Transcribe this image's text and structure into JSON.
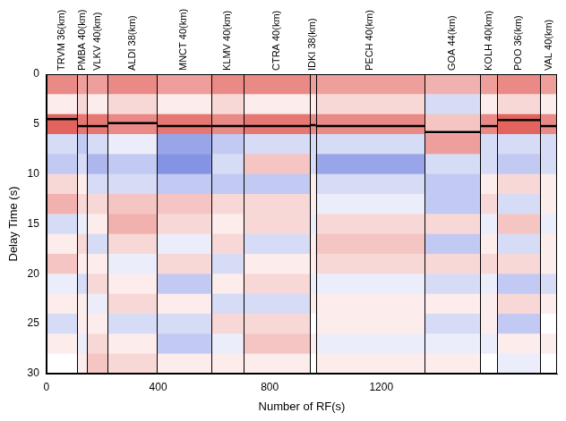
{
  "chart_data": {
    "type": "heatmap",
    "x_label": "Number of RF(s)",
    "y_label": "Delay Time (s)",
    "xlim": [
      0,
      1830
    ],
    "ylim": [
      0,
      30
    ],
    "xticks": [
      0,
      400,
      800,
      1200
    ],
    "yticks": [
      0,
      5,
      10,
      15,
      20,
      25,
      30
    ],
    "grid": false,
    "delay_bins": [
      0,
      2,
      4,
      6,
      8,
      10,
      12,
      14,
      16,
      18,
      20,
      22,
      24,
      26,
      28,
      30
    ],
    "zlim": [
      -1,
      1
    ],
    "stations": [
      {
        "name": "TRVM 36(km)",
        "rf_range": [
          0,
          110
        ],
        "moho_delay": 4.5,
        "cells": [
          0.6,
          0.1,
          0.8,
          -0.2,
          -0.3,
          0.2,
          0.4,
          -0.2,
          0.1,
          0.3,
          -0.1,
          0.1,
          -0.2,
          0.1,
          0.0
        ]
      },
      {
        "name": "PMBA 40(km)",
        "rf_range": [
          110,
          145
        ],
        "moho_delay": 5.2,
        "cells": [
          0.5,
          0.2,
          0.7,
          -0.3,
          -0.2,
          0.1,
          0.2,
          -0.1,
          0.2,
          0.1,
          -0.2,
          0.1,
          0.1,
          -0.1,
          0.1
        ]
      },
      {
        "name": "VLKV 40(km)",
        "rf_range": [
          145,
          220
        ],
        "moho_delay": 5.2,
        "cells": [
          0.5,
          0.1,
          0.7,
          -0.2,
          -0.4,
          -0.2,
          0.2,
          0.1,
          -0.2,
          0.1,
          0.2,
          -0.1,
          0.1,
          0.2,
          0.3
        ]
      },
      {
        "name": "ALDI 38(km)",
        "rf_range": [
          220,
          395
        ],
        "moho_delay": 4.9,
        "cells": [
          0.6,
          0.2,
          0.6,
          -0.1,
          -0.3,
          -0.2,
          0.3,
          0.4,
          0.2,
          -0.1,
          0.1,
          0.2,
          -0.2,
          0.1,
          0.2
        ]
      },
      {
        "name": "MNCT 40(km)",
        "rf_range": [
          395,
          590
        ],
        "moho_delay": 5.2,
        "cells": [
          0.5,
          0.1,
          0.7,
          -0.5,
          -0.6,
          -0.3,
          0.3,
          0.2,
          -0.1,
          0.2,
          -0.3,
          0.1,
          -0.2,
          -0.3,
          0.1
        ]
      },
      {
        "name": "KLMV 40(km)",
        "rf_range": [
          590,
          705
        ],
        "moho_delay": 5.2,
        "cells": [
          0.6,
          0.2,
          0.6,
          -0.3,
          -0.2,
          -0.3,
          0.2,
          0.1,
          0.2,
          -0.2,
          0.1,
          -0.2,
          0.2,
          -0.1,
          0.1
        ]
      },
      {
        "name": "CTRA 40(km)",
        "rf_range": [
          705,
          945
        ],
        "moho_delay": 5.2,
        "cells": [
          0.6,
          0.1,
          0.7,
          -0.2,
          0.3,
          -0.3,
          0.2,
          0.2,
          -0.2,
          0.1,
          0.2,
          -0.2,
          0.2,
          0.3,
          0.1
        ]
      },
      {
        "name": "IDKI 38(km)",
        "rf_range": [
          945,
          965
        ],
        "moho_delay": 5.1,
        "cells": [
          0.5,
          0.1,
          0.6,
          -0.2,
          -0.2,
          0.1,
          0.1,
          -0.1,
          0.1,
          0.1,
          -0.1,
          0.1,
          0.0,
          0.1,
          0.0
        ]
      },
      {
        "name": "PECH 40(km)",
        "rf_range": [
          965,
          1355
        ],
        "moho_delay": 5.2,
        "cells": [
          0.5,
          0.2,
          0.6,
          -0.2,
          -0.5,
          -0.2,
          -0.1,
          0.2,
          0.3,
          0.2,
          -0.1,
          0.1,
          0.1,
          -0.1,
          0.1
        ]
      },
      {
        "name": "GOA 44(km)",
        "rf_range": [
          1355,
          1555
        ],
        "moho_delay": 5.8,
        "cells": [
          0.4,
          -0.2,
          0.3,
          0.5,
          -0.2,
          -0.3,
          -0.3,
          0.2,
          -0.3,
          0.2,
          -0.2,
          0.1,
          -0.2,
          -0.1,
          0.1
        ]
      },
      {
        "name": "KOLH 40(km)",
        "rf_range": [
          1555,
          1615
        ],
        "moho_delay": 5.2,
        "cells": [
          0.5,
          0.1,
          0.6,
          -0.2,
          -0.2,
          0.1,
          0.2,
          -0.1,
          0.1,
          0.2,
          -0.1,
          0.1,
          0.1,
          -0.1,
          0.0
        ]
      },
      {
        "name": "POO 36(km)",
        "rf_range": [
          1615,
          1770
        ],
        "moho_delay": 4.6,
        "cells": [
          0.6,
          0.2,
          0.8,
          -0.2,
          -0.3,
          0.2,
          -0.2,
          0.3,
          -0.2,
          0.2,
          -0.3,
          0.2,
          -0.3,
          0.1,
          -0.1
        ]
      },
      {
        "name": "VAL 40(km)",
        "rf_range": [
          1770,
          1830
        ],
        "moho_delay": 5.2,
        "cells": [
          0.5,
          0.1,
          0.6,
          -0.2,
          -0.2,
          0.1,
          0.1,
          -0.1,
          0.1,
          0.1,
          -0.2,
          0.1,
          0.0,
          0.1,
          0.0
        ]
      }
    ]
  }
}
